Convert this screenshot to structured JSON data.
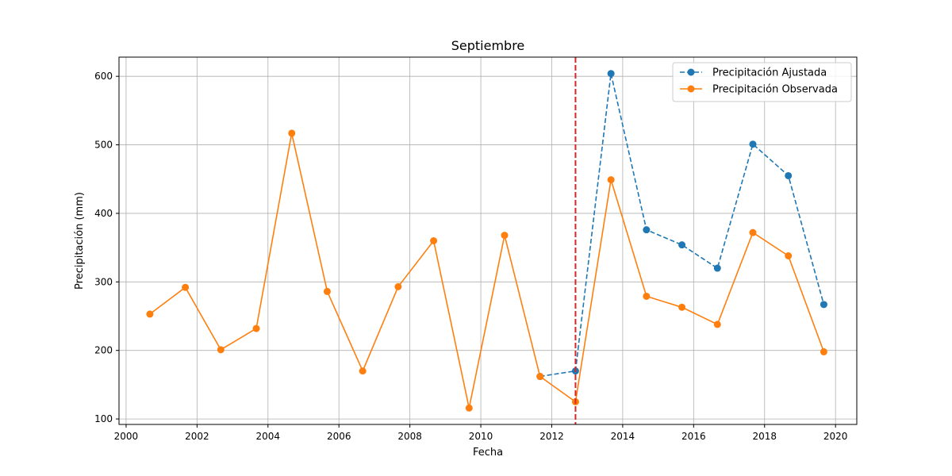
{
  "chart_data": {
    "type": "line",
    "title": "Septiembre",
    "xlabel": "Fecha",
    "ylabel": "Precipitación (mm)",
    "xlim": [
      1999.8,
      2020.6
    ],
    "ylim": [
      92,
      628
    ],
    "x_ticks": [
      2000,
      2002,
      2004,
      2006,
      2008,
      2010,
      2012,
      2014,
      2016,
      2018,
      2020
    ],
    "x_tick_labels": [
      "2000",
      "2002",
      "2004",
      "2006",
      "2008",
      "2010",
      "2012",
      "2014",
      "2016",
      "2018",
      "2020"
    ],
    "y_ticks": [
      100,
      200,
      300,
      400,
      500,
      600
    ],
    "y_tick_labels": [
      "100",
      "200",
      "300",
      "400",
      "500",
      "600"
    ],
    "grid": true,
    "legend_position": "top-right",
    "vline_x": 2012.67,
    "vline_color": "#d62728",
    "series": [
      {
        "name": "Precipitación Ajustada",
        "color": "#1f77b4",
        "linestyle": "dashed",
        "marker": "circle",
        "x": [
          2011.67,
          2012.67,
          2013.67,
          2014.67,
          2015.67,
          2016.67,
          2017.67,
          2018.67,
          2019.67
        ],
        "values": [
          162,
          170,
          604,
          376,
          354,
          320,
          501,
          455,
          267
        ]
      },
      {
        "name": "Precipitación Observada",
        "color": "#ff7f0e",
        "linestyle": "solid",
        "marker": "circle",
        "x": [
          2000.67,
          2001.67,
          2002.67,
          2003.67,
          2004.67,
          2005.67,
          2006.67,
          2007.67,
          2008.67,
          2009.67,
          2010.67,
          2011.67,
          2012.67,
          2013.67,
          2014.67,
          2015.67,
          2016.67,
          2017.67,
          2018.67,
          2019.67
        ],
        "values": [
          253,
          292,
          201,
          232,
          517,
          286,
          170,
          293,
          360,
          116,
          368,
          162,
          125,
          449,
          279,
          263,
          238,
          372,
          338,
          198
        ]
      }
    ]
  }
}
